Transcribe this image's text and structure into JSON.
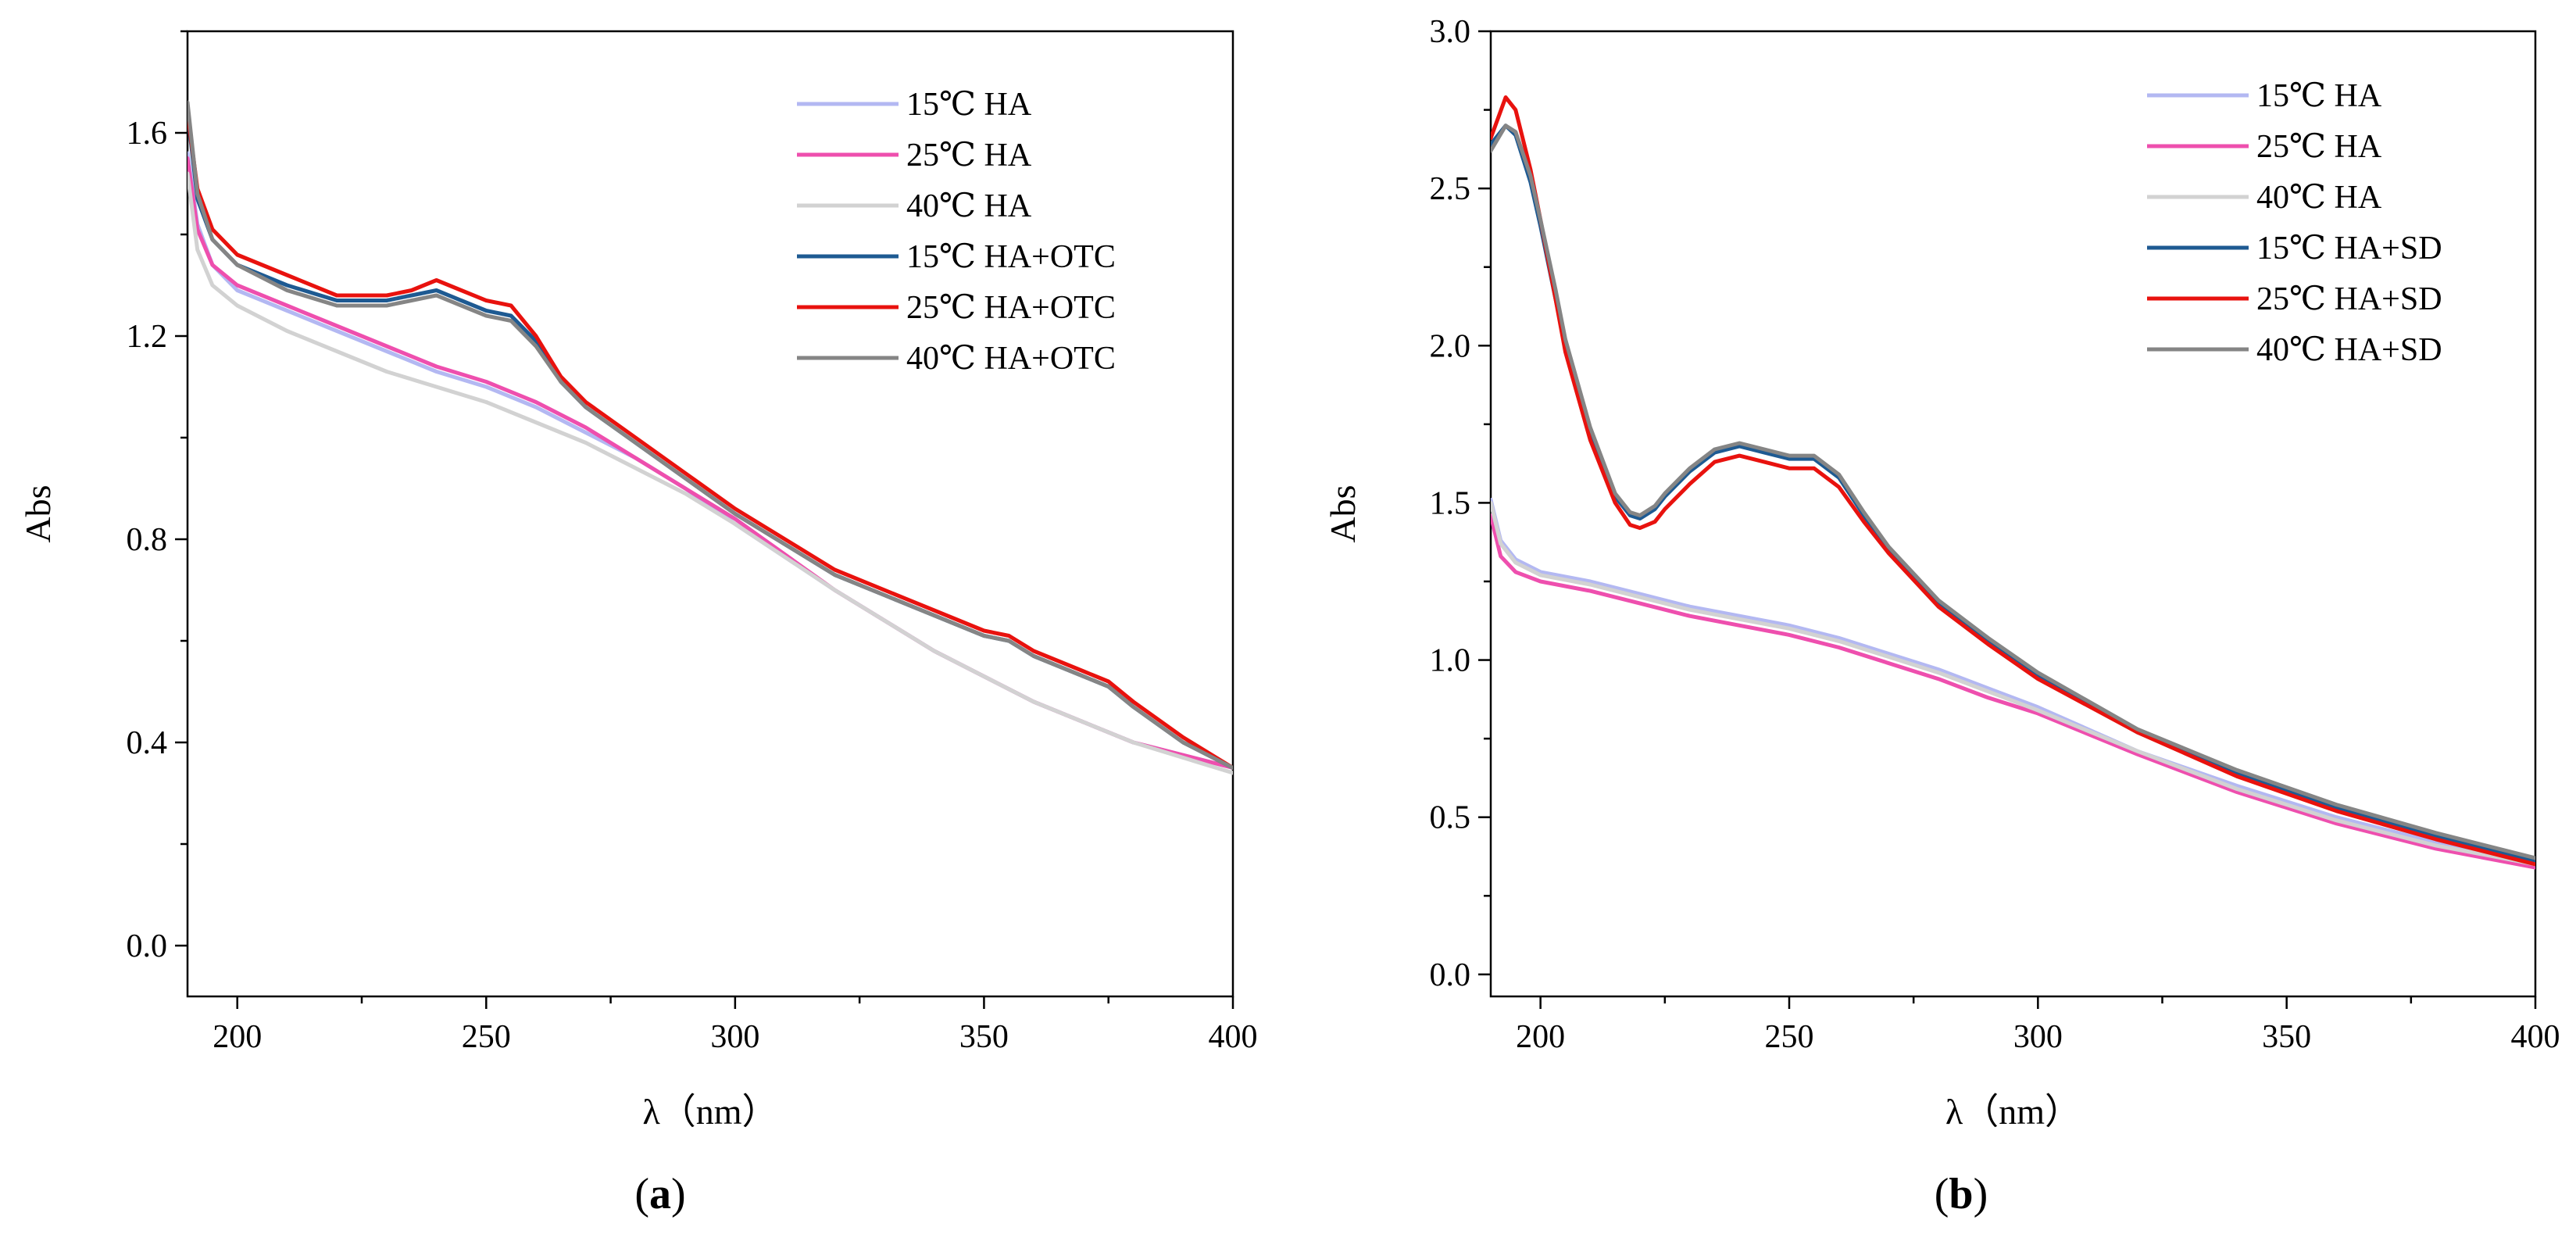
{
  "chart_data": [
    {
      "type": "line",
      "panel_label": "a",
      "title": "",
      "xlabel": "λ（nm）",
      "ylabel": "Abs",
      "xlim": [
        190,
        400
      ],
      "ylim": [
        -0.1,
        1.8
      ],
      "xticks": [
        200,
        250,
        300,
        350,
        400
      ],
      "xtick_labels": [
        "200",
        "250",
        "300",
        "350",
        "400"
      ],
      "yticks": [
        0.0,
        0.4,
        0.8,
        1.2,
        1.6
      ],
      "ytick_labels": [
        "0.0",
        "0.4",
        "0.8",
        "1.2",
        "1.6"
      ],
      "grid": false,
      "legend_position": "top-right",
      "series": [
        {
          "name": "15℃ HA",
          "color": "#b3b8f2",
          "x": [
            190,
            192,
            195,
            200,
            210,
            220,
            230,
            240,
            250,
            260,
            270,
            280,
            290,
            300,
            320,
            340,
            360,
            380,
            400
          ],
          "y": [
            1.56,
            1.42,
            1.34,
            1.29,
            1.25,
            1.21,
            1.17,
            1.13,
            1.1,
            1.06,
            1.01,
            0.96,
            0.9,
            0.83,
            0.7,
            0.58,
            0.48,
            0.4,
            0.35
          ]
        },
        {
          "name": "25℃ HA",
          "color": "#ee4fae",
          "x": [
            190,
            192,
            195,
            200,
            210,
            220,
            230,
            240,
            250,
            260,
            270,
            280,
            290,
            300,
            320,
            340,
            360,
            380,
            400
          ],
          "y": [
            1.55,
            1.41,
            1.34,
            1.3,
            1.26,
            1.22,
            1.18,
            1.14,
            1.11,
            1.07,
            1.02,
            0.96,
            0.9,
            0.84,
            0.7,
            0.58,
            0.48,
            0.4,
            0.35
          ]
        },
        {
          "name": "40℃ HA",
          "color": "#d2d2d2",
          "x": [
            190,
            192,
            195,
            200,
            210,
            220,
            230,
            240,
            250,
            260,
            270,
            280,
            290,
            300,
            320,
            340,
            360,
            380,
            400
          ],
          "y": [
            1.52,
            1.37,
            1.3,
            1.26,
            1.21,
            1.17,
            1.13,
            1.1,
            1.07,
            1.03,
            0.99,
            0.94,
            0.89,
            0.83,
            0.7,
            0.58,
            0.48,
            0.4,
            0.34
          ]
        },
        {
          "name": "15℃ HA+OTC",
          "color": "#1e5a92",
          "x": [
            190,
            192,
            195,
            200,
            210,
            220,
            230,
            235,
            240,
            245,
            250,
            255,
            260,
            265,
            270,
            280,
            290,
            300,
            320,
            340,
            350,
            355,
            360,
            370,
            375,
            380,
            390,
            400
          ],
          "y": [
            1.64,
            1.47,
            1.39,
            1.34,
            1.3,
            1.27,
            1.27,
            1.28,
            1.29,
            1.27,
            1.25,
            1.24,
            1.19,
            1.11,
            1.06,
            0.99,
            0.92,
            0.85,
            0.73,
            0.65,
            0.61,
            0.6,
            0.57,
            0.53,
            0.51,
            0.47,
            0.4,
            0.35
          ]
        },
        {
          "name": "25℃ HA+OTC",
          "color": "#e8120e",
          "x": [
            190,
            192,
            195,
            200,
            210,
            220,
            230,
            235,
            240,
            245,
            250,
            255,
            260,
            265,
            270,
            280,
            290,
            300,
            320,
            340,
            350,
            355,
            360,
            370,
            375,
            380,
            390,
            400
          ],
          "y": [
            1.64,
            1.49,
            1.41,
            1.36,
            1.32,
            1.28,
            1.28,
            1.29,
            1.31,
            1.29,
            1.27,
            1.26,
            1.2,
            1.12,
            1.07,
            1.0,
            0.93,
            0.86,
            0.74,
            0.66,
            0.62,
            0.61,
            0.58,
            0.54,
            0.52,
            0.48,
            0.41,
            0.35
          ]
        },
        {
          "name": "40℃ HA+OTC",
          "color": "#858585",
          "x": [
            190,
            192,
            195,
            200,
            210,
            220,
            230,
            235,
            240,
            245,
            250,
            255,
            260,
            265,
            270,
            280,
            290,
            300,
            320,
            340,
            350,
            355,
            360,
            370,
            375,
            380,
            390,
            400
          ],
          "y": [
            1.66,
            1.48,
            1.39,
            1.34,
            1.29,
            1.26,
            1.26,
            1.27,
            1.28,
            1.26,
            1.24,
            1.23,
            1.18,
            1.11,
            1.06,
            0.99,
            0.92,
            0.85,
            0.73,
            0.65,
            0.61,
            0.6,
            0.57,
            0.53,
            0.51,
            0.47,
            0.4,
            0.35
          ]
        }
      ]
    },
    {
      "type": "line",
      "panel_label": "b",
      "title": "",
      "xlabel": "λ（nm）",
      "ylabel": "Abs",
      "xlim": [
        190,
        400
      ],
      "ylim": [
        -0.07,
        3.0
      ],
      "xticks": [
        200,
        250,
        300,
        350,
        400
      ],
      "xtick_labels": [
        "200",
        "250",
        "300",
        "350",
        "400"
      ],
      "yticks": [
        0.0,
        0.5,
        1.0,
        1.5,
        2.0,
        2.5,
        3.0
      ],
      "ytick_labels": [
        "0.0",
        "0.5",
        "1.0",
        "1.5",
        "2.0",
        "2.5",
        "3.0"
      ],
      "grid": false,
      "legend_position": "top-right",
      "series": [
        {
          "name": "15℃ HA",
          "color": "#b3b8f2",
          "x": [
            190,
            192,
            195,
            200,
            210,
            220,
            230,
            240,
            250,
            260,
            270,
            280,
            290,
            300,
            320,
            340,
            360,
            380,
            400
          ],
          "y": [
            1.51,
            1.38,
            1.32,
            1.28,
            1.25,
            1.21,
            1.17,
            1.14,
            1.11,
            1.07,
            1.02,
            0.97,
            0.91,
            0.85,
            0.71,
            0.6,
            0.5,
            0.42,
            0.35
          ]
        },
        {
          "name": "25℃ HA",
          "color": "#ee4fae",
          "x": [
            190,
            192,
            195,
            200,
            210,
            220,
            230,
            240,
            250,
            260,
            270,
            280,
            290,
            300,
            320,
            340,
            360,
            380,
            400
          ],
          "y": [
            1.46,
            1.33,
            1.28,
            1.25,
            1.22,
            1.18,
            1.14,
            1.11,
            1.08,
            1.04,
            0.99,
            0.94,
            0.88,
            0.83,
            0.7,
            0.58,
            0.48,
            0.4,
            0.34
          ]
        },
        {
          "name": "40℃ HA",
          "color": "#d2d2d2",
          "x": [
            190,
            192,
            195,
            200,
            210,
            220,
            230,
            240,
            250,
            260,
            270,
            280,
            290,
            300,
            320,
            340,
            360,
            380,
            400
          ],
          "y": [
            1.5,
            1.37,
            1.31,
            1.27,
            1.24,
            1.2,
            1.16,
            1.13,
            1.1,
            1.06,
            1.01,
            0.96,
            0.9,
            0.84,
            0.71,
            0.59,
            0.49,
            0.41,
            0.35
          ]
        },
        {
          "name": "15℃ HA+SD",
          "color": "#1e5a92",
          "x": [
            190,
            193,
            195,
            198,
            200,
            203,
            205,
            210,
            215,
            218,
            220,
            223,
            225,
            230,
            235,
            240,
            245,
            250,
            255,
            260,
            265,
            270,
            280,
            290,
            300,
            320,
            340,
            360,
            380,
            400
          ],
          "y": [
            2.64,
            2.7,
            2.67,
            2.52,
            2.38,
            2.15,
            2.0,
            1.72,
            1.52,
            1.46,
            1.45,
            1.48,
            1.52,
            1.6,
            1.66,
            1.68,
            1.66,
            1.64,
            1.64,
            1.58,
            1.46,
            1.35,
            1.18,
            1.06,
            0.95,
            0.77,
            0.64,
            0.53,
            0.44,
            0.36
          ]
        },
        {
          "name": "25℃ HA+SD",
          "color": "#e8120e",
          "x": [
            190,
            193,
            195,
            198,
            200,
            203,
            205,
            210,
            215,
            218,
            220,
            223,
            225,
            230,
            235,
            240,
            245,
            250,
            255,
            260,
            265,
            270,
            280,
            290,
            300,
            320,
            340,
            360,
            380,
            400
          ],
          "y": [
            2.66,
            2.79,
            2.75,
            2.56,
            2.4,
            2.15,
            1.98,
            1.7,
            1.5,
            1.43,
            1.42,
            1.44,
            1.48,
            1.56,
            1.63,
            1.65,
            1.63,
            1.61,
            1.61,
            1.55,
            1.44,
            1.34,
            1.17,
            1.05,
            0.94,
            0.77,
            0.63,
            0.52,
            0.43,
            0.35
          ]
        },
        {
          "name": "40℃ HA+SD",
          "color": "#858585",
          "x": [
            190,
            193,
            195,
            198,
            200,
            203,
            205,
            210,
            215,
            218,
            220,
            223,
            225,
            230,
            235,
            240,
            245,
            250,
            255,
            260,
            265,
            270,
            280,
            290,
            300,
            320,
            340,
            360,
            380,
            400
          ],
          "y": [
            2.62,
            2.7,
            2.68,
            2.54,
            2.4,
            2.18,
            2.02,
            1.74,
            1.53,
            1.47,
            1.46,
            1.49,
            1.53,
            1.61,
            1.67,
            1.69,
            1.67,
            1.65,
            1.65,
            1.59,
            1.47,
            1.36,
            1.19,
            1.07,
            0.96,
            0.78,
            0.65,
            0.54,
            0.45,
            0.37
          ]
        }
      ]
    }
  ]
}
